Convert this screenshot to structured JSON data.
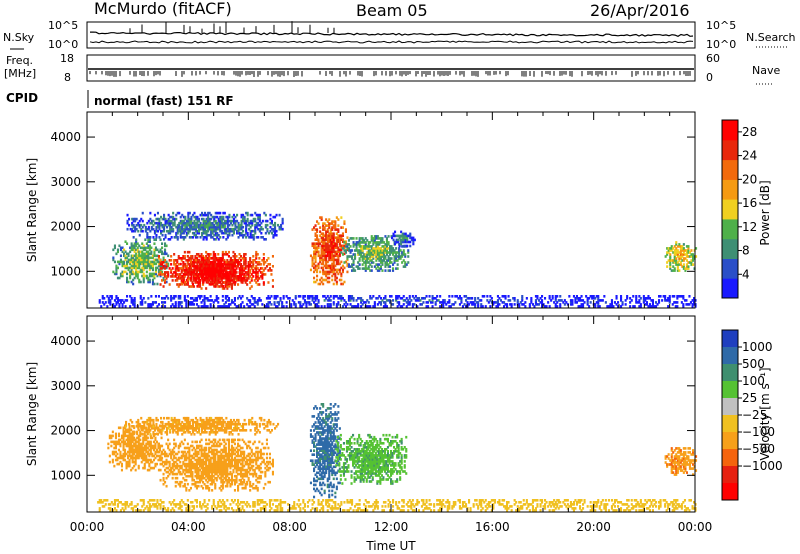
{
  "header": {
    "station": "McMurdo (fitACF)",
    "beam": "Beam 05",
    "date": "26/Apr/2016"
  },
  "strips": {
    "nsky_label": "N.Sky",
    "nsearch_label": "N.Search",
    "nsky_ticks": [
      "10^5",
      "10^0"
    ],
    "nsearch_ticks": [
      "10^5",
      "10^0"
    ],
    "freq_label_1": "Freq.",
    "freq_label_2": "[MHz]",
    "freq_ticks": [
      "18",
      "8"
    ],
    "nave_label": "Nave",
    "nave_ticks": [
      "60",
      "0"
    ],
    "cpid_label": "CPID",
    "cpid_text": "normal (fast) 151 RF"
  },
  "colors": {
    "power_scale": [
      "#1a1aff",
      "#2a4fc8",
      "#3e8f74",
      "#4fb04a",
      "#f0d020",
      "#f59a12",
      "#f26a0c",
      "#e8280c",
      "#ff0000"
    ],
    "velocity_scale": [
      "#1f3fbf",
      "#2f6aa8",
      "#3f8f6f",
      "#55c233",
      "#c0c0c0",
      "#f0c020",
      "#f7a01a",
      "#f5640d",
      "#e62010",
      "#ff0000"
    ],
    "ground_scatter": "#a0a0a0"
  },
  "chart_data": [
    {
      "type": "heatmap",
      "name": "power",
      "title": "",
      "xlabel": "",
      "ylabel": "Slant Range [km]",
      "xlim": [
        0,
        24
      ],
      "ylim": [
        180,
        4560
      ],
      "x_ticks": [
        "00:00",
        "04:00",
        "08:00",
        "12:00",
        "16:00",
        "20:00",
        "00:00"
      ],
      "y_ticks": [
        "1000",
        "2000",
        "3000",
        "4000"
      ],
      "colorbar": {
        "label": "Power [dB]",
        "ticks": [
          "4",
          "8",
          "12",
          "16",
          "20",
          "24",
          "28"
        ],
        "range": [
          0,
          30
        ]
      },
      "regions": [
        {
          "t": [
            1.0,
            3.2
          ],
          "r": [
            700,
            1700
          ],
          "value": 14
        },
        {
          "t": [
            2.8,
            7.3
          ],
          "r": [
            600,
            1450
          ],
          "value": 29
        },
        {
          "t": [
            3.6,
            6.2
          ],
          "r": [
            650,
            1300
          ],
          "value": 31
        },
        {
          "t": [
            1.5,
            7.8
          ],
          "r": [
            1700,
            2300
          ],
          "value": 9
        },
        {
          "t": [
            8.8,
            10.3
          ],
          "r": [
            700,
            2200
          ],
          "value": 26
        },
        {
          "t": [
            10.0,
            12.7
          ],
          "r": [
            1000,
            1800
          ],
          "value": 13
        },
        {
          "t": [
            12.0,
            13.0
          ],
          "r": [
            1550,
            1900
          ],
          "value": 8
        },
        {
          "t": [
            22.8,
            24.0
          ],
          "r": [
            1000,
            1650
          ],
          "value": 18
        },
        {
          "t": [
            0.4,
            24.0
          ],
          "r": [
            200,
            450
          ],
          "value": 5
        }
      ]
    },
    {
      "type": "heatmap",
      "name": "velocity",
      "title": "",
      "xlabel": "Time UT",
      "ylabel": "Slant Range [km]",
      "xlim": [
        0,
        24
      ],
      "ylim": [
        180,
        4560
      ],
      "x_ticks": [
        "00:00",
        "04:00",
        "08:00",
        "12:00",
        "16:00",
        "20:00",
        "00:00"
      ],
      "y_ticks": [
        "1000",
        "2000",
        "3000",
        "4000"
      ],
      "colorbar": {
        "label": "Velocity [m s⁻¹]",
        "ticks": [
          "1000",
          "500",
          "100",
          "25",
          "−25",
          "−100",
          "−500",
          "−1000"
        ]
      },
      "regions": [
        {
          "t": [
            0.8,
            3.0
          ],
          "r": [
            1100,
            2100
          ],
          "value": -300
        },
        {
          "t": [
            2.8,
            7.3
          ],
          "r": [
            650,
            1800
          ],
          "value": -200
        },
        {
          "t": [
            1.5,
            7.5
          ],
          "r": [
            1900,
            2300
          ],
          "value": -150
        },
        {
          "t": [
            8.8,
            10.0
          ],
          "r": [
            500,
            2600
          ],
          "value": 700
        },
        {
          "t": [
            9.8,
            12.6
          ],
          "r": [
            800,
            1900
          ],
          "value": 80
        },
        {
          "t": [
            22.8,
            24.0
          ],
          "r": [
            1000,
            1600
          ],
          "value": -400
        },
        {
          "t": [
            0.4,
            24.0
          ],
          "r": [
            200,
            450
          ],
          "value": -60
        }
      ]
    }
  ],
  "time_axis_label": "Time UT"
}
